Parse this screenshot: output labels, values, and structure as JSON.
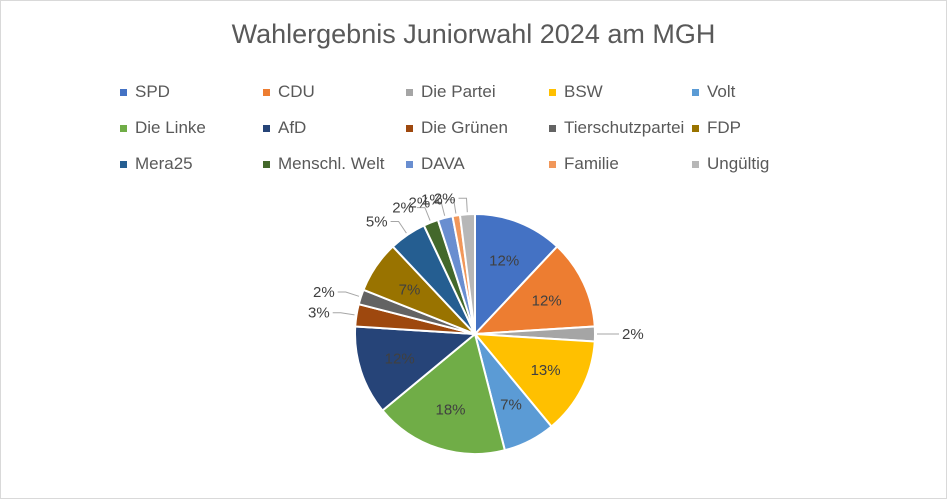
{
  "chart_data": {
    "type": "pie",
    "title": "Wahlergebnis Juniorwahl 2024 am MGH",
    "legend_position": "top",
    "slices": [
      {
        "name": "SPD",
        "value": 12,
        "label": "12%",
        "color": "#4472C4"
      },
      {
        "name": "CDU",
        "value": 12,
        "label": "12%",
        "color": "#ED7D31"
      },
      {
        "name": "Die Partei",
        "value": 2,
        "label": "2%",
        "color": "#A5A5A5"
      },
      {
        "name": "BSW",
        "value": 13,
        "label": "13%",
        "color": "#FFC000"
      },
      {
        "name": "Volt",
        "value": 7,
        "label": "7%",
        "color": "#5B9BD5"
      },
      {
        "name": "Die Linke",
        "value": 18,
        "label": "18%",
        "color": "#70AD47"
      },
      {
        "name": "AfD",
        "value": 12,
        "label": "12%",
        "color": "#264478"
      },
      {
        "name": "Die Grünen",
        "value": 3,
        "label": "3%",
        "color": "#9E480E"
      },
      {
        "name": "Tierschutzpartei",
        "value": 2,
        "label": "2%",
        "color": "#636363"
      },
      {
        "name": "FDP",
        "value": 7,
        "label": "7%",
        "color": "#997300"
      },
      {
        "name": "Mera25",
        "value": 5,
        "label": "5%",
        "color": "#255E91"
      },
      {
        "name": "Menschl. Welt",
        "value": 2,
        "label": "2%",
        "color": "#43682B"
      },
      {
        "name": "DAVA",
        "value": 2,
        "label": "2%",
        "color": "#698ED0"
      },
      {
        "name": "Familie",
        "value": 1,
        "label": "1%",
        "color": "#F1975A"
      },
      {
        "name": "Ungültig",
        "value": 2,
        "label": "2%",
        "color": "#B7B7B7"
      }
    ]
  }
}
